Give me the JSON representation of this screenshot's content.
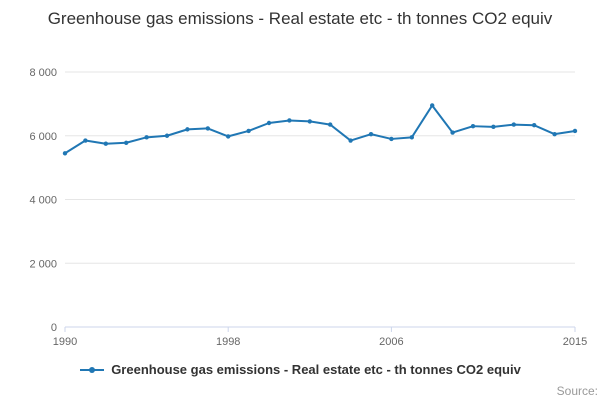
{
  "title": "Greenhouse gas emissions - Real estate etc - th tonnes CO2 equiv",
  "legend": {
    "label": "Greenhouse gas emissions - Real estate etc - th tonnes CO2 equiv"
  },
  "footer": {
    "source": "Source:"
  },
  "chart_data": {
    "type": "line",
    "title": "Greenhouse gas emissions - Real estate etc - th tonnes CO2 equiv",
    "xlabel": "",
    "ylabel": "",
    "ylim": [
      0,
      8000
    ],
    "grid": "horizontal",
    "legend_position": "bottom",
    "years": [
      1990,
      1991,
      1992,
      1993,
      1994,
      1995,
      1996,
      1997,
      1998,
      1999,
      2000,
      2001,
      2002,
      2003,
      2004,
      2005,
      2006,
      2007,
      2008,
      2009,
      2010,
      2011,
      2012,
      2013,
      2014,
      2015
    ],
    "values": [
      5450,
      5850,
      5750,
      5780,
      5950,
      6000,
      6200,
      6230,
      5980,
      6150,
      6400,
      6480,
      6450,
      6350,
      5850,
      6050,
      5900,
      5950,
      6950,
      6100,
      6300,
      6280,
      6350,
      6330,
      6050,
      6150
    ],
    "y_ticks": [
      {
        "value": 0,
        "label": "0"
      },
      {
        "value": 2000,
        "label": "2 000"
      },
      {
        "value": 4000,
        "label": "4 000"
      },
      {
        "value": 6000,
        "label": "6 000"
      },
      {
        "value": 8000,
        "label": "8 000"
      }
    ],
    "x_ticks": [
      {
        "year": 1990,
        "label": "1990"
      },
      {
        "year": 1998,
        "label": "1998"
      },
      {
        "year": 2006,
        "label": "2006"
      },
      {
        "year": 2015,
        "label": "2015"
      }
    ],
    "line_color": "#2077b4",
    "grid_color": "#e6e6e6",
    "axis_color": "#ccd6eb",
    "tick_text_color": "#666666"
  }
}
